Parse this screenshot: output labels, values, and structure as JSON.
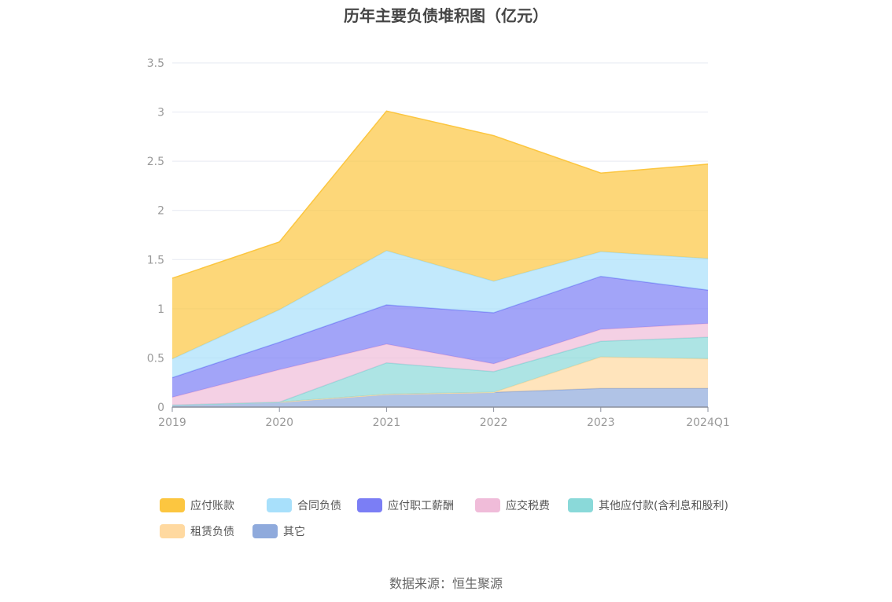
{
  "chart_data": {
    "type": "area",
    "stacked": true,
    "title": "历年主要负债堆积图（亿元）",
    "categories": [
      "2019",
      "2020",
      "2021",
      "2022",
      "2023",
      "2024Q1"
    ],
    "ylim": [
      0,
      3.5
    ],
    "yticks": [
      "0",
      "0.5",
      "1",
      "1.5",
      "2",
      "2.5",
      "3",
      "3.5"
    ],
    "grid": true,
    "legend_position": "bottom",
    "series": [
      {
        "name": "其它",
        "color": "#8faadc",
        "values": [
          0.02,
          0.05,
          0.13,
          0.15,
          0.19,
          0.19
        ]
      },
      {
        "name": "租赁负债",
        "color": "#ffd9a0",
        "values": [
          0.0,
          0.0,
          0.0,
          0.0,
          0.32,
          0.3
        ]
      },
      {
        "name": "其他应付款(含利息和股利)",
        "color": "#8ad9d9",
        "values": [
          0.0,
          0.0,
          0.32,
          0.21,
          0.16,
          0.22
        ]
      },
      {
        "name": "应交税费",
        "color": "#f0bcd9",
        "values": [
          0.08,
          0.33,
          0.19,
          0.08,
          0.12,
          0.14
        ]
      },
      {
        "name": "应付职工薪酬",
        "color": "#7b7ef5",
        "values": [
          0.2,
          0.28,
          0.4,
          0.52,
          0.54,
          0.34
        ]
      },
      {
        "name": "合同负债",
        "color": "#a8e0fb",
        "values": [
          0.19,
          0.33,
          0.55,
          0.32,
          0.25,
          0.32
        ]
      },
      {
        "name": "应付账款",
        "color": "#fcc640",
        "values": [
          0.82,
          0.69,
          1.42,
          1.48,
          0.8,
          0.96
        ]
      }
    ]
  },
  "legend_order": [
    "应付账款",
    "合同负债",
    "应付职工薪酬",
    "应交税费",
    "其他应付款(含利息和股利)",
    "租赁负债",
    "其它"
  ],
  "source": "数据来源：恒生聚源"
}
